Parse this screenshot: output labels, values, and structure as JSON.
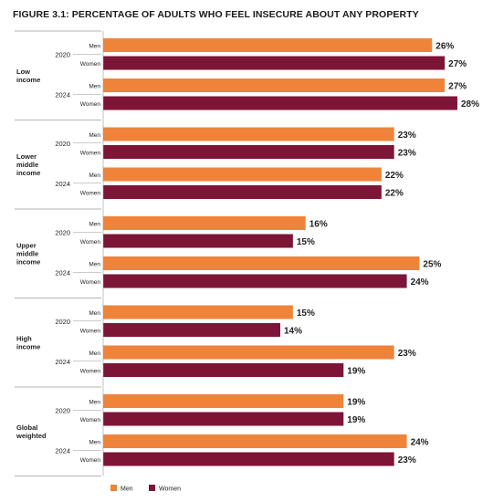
{
  "chart_data": {
    "type": "bar",
    "orientation": "horizontal",
    "title": "FIGURE 3.1:  PERCENTAGE OF ADULTS WHO FEEL INSECURE ABOUT ANY PROPERTY",
    "groups": [
      {
        "label": [
          "Low",
          "income"
        ],
        "years": [
          {
            "year": "2020",
            "values": {
              "Men": 26,
              "Women": 27
            }
          },
          {
            "year": "2024",
            "values": {
              "Men": 27,
              "Women": 28
            }
          }
        ]
      },
      {
        "label": [
          "Lower",
          "middle",
          "income"
        ],
        "years": [
          {
            "year": "2020",
            "values": {
              "Men": 23,
              "Women": 23
            }
          },
          {
            "year": "2024",
            "values": {
              "Men": 22,
              "Women": 22
            }
          }
        ]
      },
      {
        "label": [
          "Upper",
          "middle",
          "income"
        ],
        "years": [
          {
            "year": "2020",
            "values": {
              "Men": 16,
              "Women": 15
            }
          },
          {
            "year": "2024",
            "values": {
              "Men": 25,
              "Women": 24
            }
          }
        ]
      },
      {
        "label": [
          "High",
          "income"
        ],
        "years": [
          {
            "year": "2020",
            "values": {
              "Men": 15,
              "Women": 14
            }
          },
          {
            "year": "2024",
            "values": {
              "Men": 23,
              "Women": 19
            }
          }
        ]
      },
      {
        "label": [
          "Global",
          "weighted"
        ],
        "years": [
          {
            "year": "2020",
            "values": {
              "Men": 19,
              "Women": 19
            }
          },
          {
            "year": "2024",
            "values": {
              "Men": 24,
              "Women": 23
            }
          }
        ]
      }
    ],
    "series": [
      {
        "name": "Men",
        "color": "#f0833a"
      },
      {
        "name": "Women",
        "color": "#7d1537"
      }
    ],
    "value_suffix": "%",
    "xlim": [
      0,
      28
    ],
    "grid": false,
    "legend": "bottom-left"
  }
}
